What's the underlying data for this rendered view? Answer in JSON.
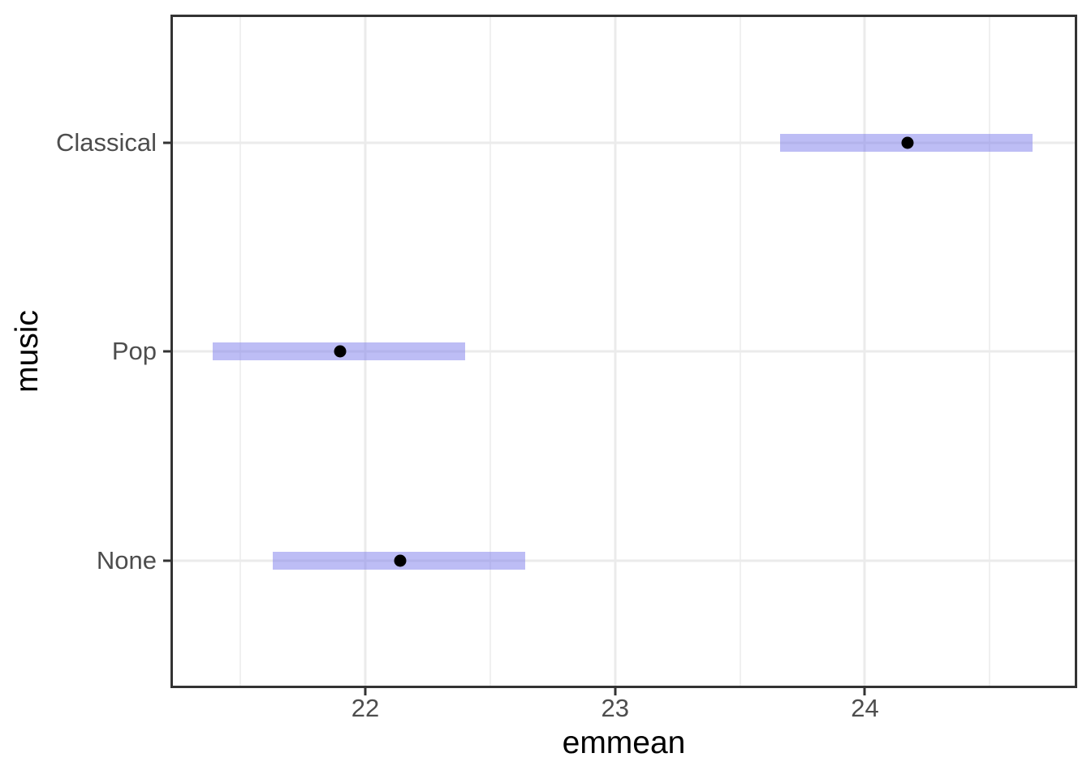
{
  "figure": {
    "background": "#FFFFFF"
  },
  "chart_data": {
    "type": "scatter",
    "subtype": "estimated-marginal-means confidence-interval plot (emmeans / ggplot2 style)",
    "title": "",
    "xlabel": "emmean",
    "ylabel": "music",
    "xlim": [
      21.23,
      24.84
    ],
    "x_major_ticks": [
      22,
      23,
      24
    ],
    "x_minor_gridlines": [
      21.5,
      22.5,
      23.5,
      24.5
    ],
    "grid": "on",
    "legend": "none",
    "categories": [
      "Classical",
      "Pop",
      "None"
    ],
    "series": [
      {
        "category": "Classical",
        "emmean": 24.17,
        "ci_lower": 23.66,
        "ci_upper": 24.67
      },
      {
        "category": "Pop",
        "emmean": 21.9,
        "ci_lower": 21.39,
        "ci_upper": 22.4
      },
      {
        "category": "None",
        "emmean": 22.14,
        "ci_lower": 21.63,
        "ci_upper": 22.64
      }
    ],
    "colors": {
      "ci_bar_fill": "#7C7CEB",
      "ci_bar_opacity": 0.5,
      "point": "#000000",
      "panel_border": "#333333",
      "grid_major": "#EBEBEB",
      "grid_minor": "#F0F0F0",
      "tick_mark": "#333333",
      "tick_label": "#4D4D4D",
      "axis_title": "#000000",
      "panel_background": "#FFFFFF"
    }
  }
}
